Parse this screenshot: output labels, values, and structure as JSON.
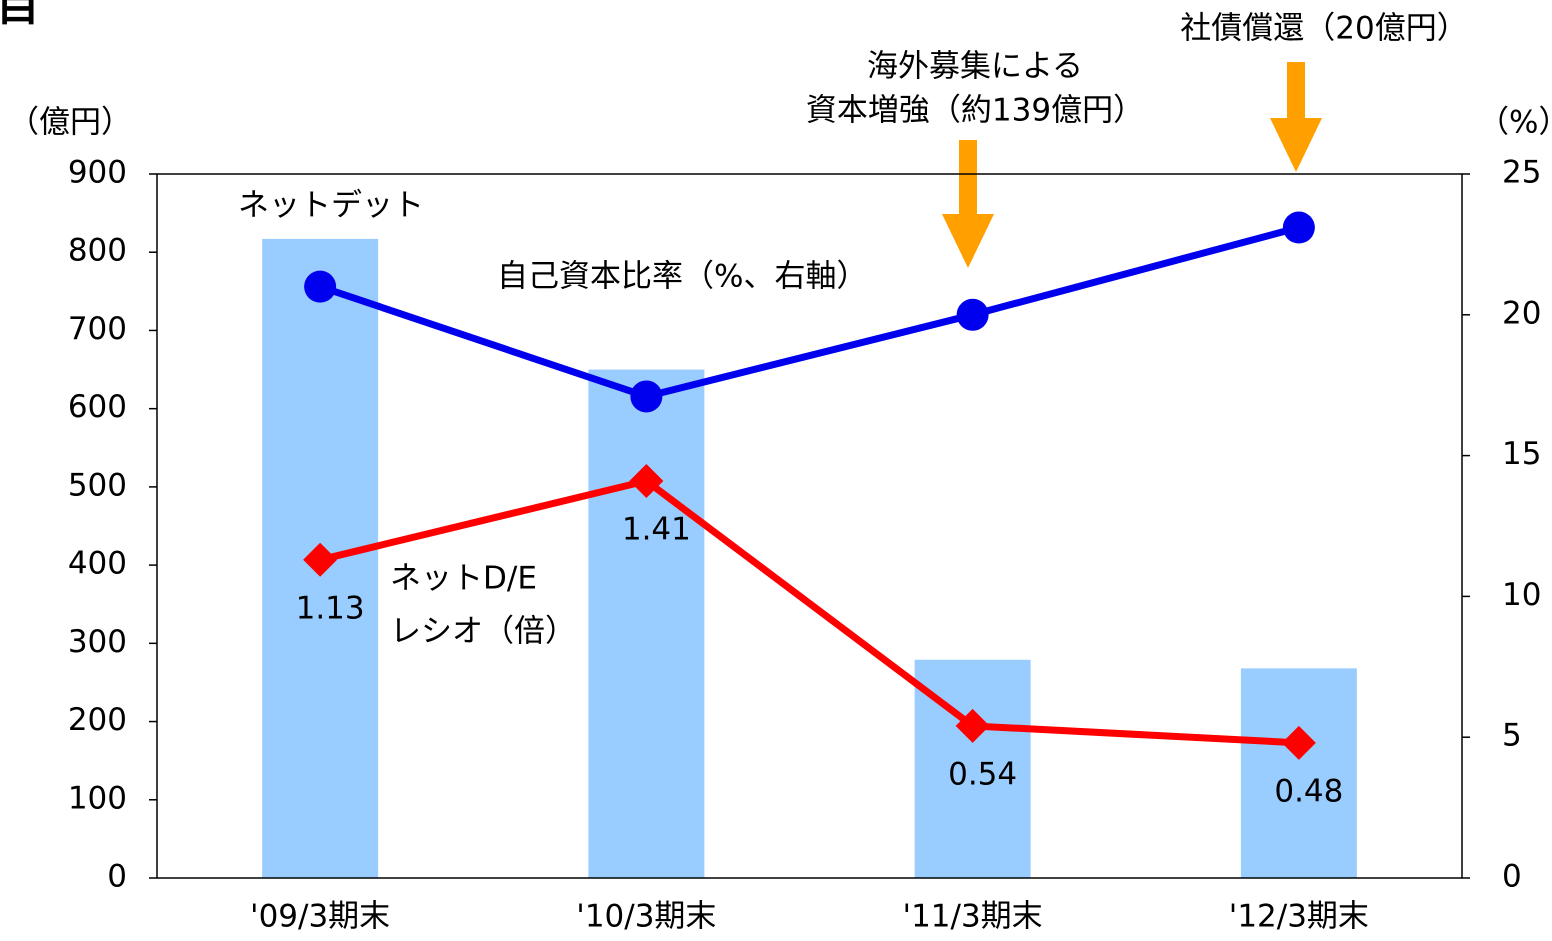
{
  "chart_data": {
    "type": "bar",
    "title": "目",
    "y_label": "（億円）",
    "y2_label": "（%）",
    "categories": [
      "'09/3期末",
      "'10/3期末",
      "'11/3期末",
      "'12/3期末"
    ],
    "series": [
      {
        "name": "ネットデット",
        "color": "#99ccff",
        "type": "bar",
        "values": [
          817,
          650,
          279,
          268
        ]
      },
      {
        "name": "自己資本比率（%、右軸）",
        "color": "#0000ee",
        "type": "line",
        "marker": "circle",
        "axis": "y2",
        "values": [
          21.0,
          17.1,
          20.0,
          23.1
        ]
      },
      {
        "name": "ネットD/E",
        "name_line2": "レシオ（倍）",
        "color": "#ff0000",
        "type": "line",
        "marker": "diamond",
        "axis": "y3",
        "values": [
          1.13,
          1.41,
          0.54,
          0.48
        ]
      }
    ],
    "annotations": [
      "海外募集による",
      "資本増強（約139億円）",
      "社債償還（20億円）"
    ],
    "annotation_color": "#ffa000",
    "ylim": [
      0,
      900
    ],
    "yticks": [
      0,
      100,
      200,
      300,
      400,
      500,
      600,
      700,
      800,
      900
    ],
    "y2lim": [
      0,
      25
    ],
    "y2ticks": [
      0,
      5,
      10,
      15,
      20,
      25
    ],
    "y3lim": [
      0,
      2.5
    ],
    "grid": false
  }
}
